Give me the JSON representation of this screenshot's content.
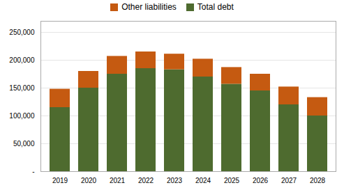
{
  "chart_data": {
    "type": "bar",
    "stacked": true,
    "categories": [
      "2019",
      "2020",
      "2021",
      "2022",
      "2023",
      "2024",
      "2025",
      "2026",
      "2027",
      "2028"
    ],
    "series": [
      {
        "name": "Total debt",
        "color": "#4e6b2f",
        "values": [
          115000,
          150000,
          175000,
          185000,
          183000,
          170000,
          157000,
          145000,
          120000,
          100000
        ]
      },
      {
        "name": "Other liabilities",
        "color": "#c55a11",
        "values": [
          33000,
          30000,
          32000,
          30000,
          28000,
          32000,
          30000,
          30000,
          32000,
          33000
        ]
      }
    ],
    "ylim": [
      0,
      270000
    ],
    "yticks": [
      {
        "value": 0,
        "label": "-"
      },
      {
        "value": 50000,
        "label": "50,000"
      },
      {
        "value": 100000,
        "label": "100,000"
      },
      {
        "value": 150000,
        "label": "150,000"
      },
      {
        "value": 200000,
        "label": "200,000"
      },
      {
        "value": 250000,
        "label": "250,000"
      }
    ],
    "grid": true,
    "legend": "top"
  }
}
